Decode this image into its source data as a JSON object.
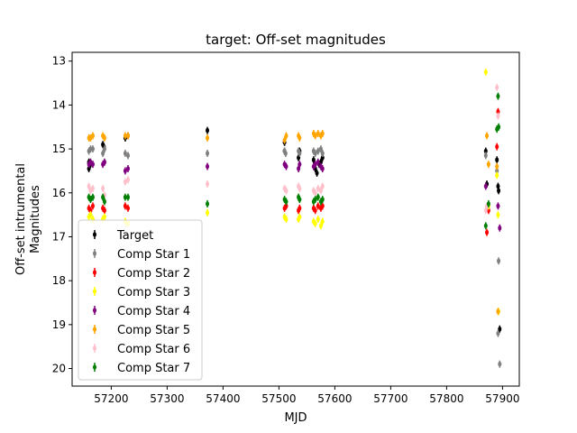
{
  "chart_data": {
    "type": "scatter",
    "title": "target: Off-set magnitudes",
    "xlabel": "MJD",
    "ylabel_lines": [
      "Off-set intrumental",
      "Magnitudes"
    ],
    "xlim": [
      57130,
      57930
    ],
    "ylim": [
      20.4,
      12.8
    ],
    "y_inverted": true,
    "grid": false,
    "legend_position": "lower left",
    "xticks": [
      57200,
      57300,
      57400,
      57500,
      57600,
      57700,
      57800,
      57900
    ],
    "yticks": [
      13,
      14,
      15,
      16,
      17,
      18,
      19,
      20
    ],
    "series": [
      {
        "name": "Target",
        "color": "#000000",
        "points": [
          [
            57160,
            15.45
          ],
          [
            57160,
            15.3
          ],
          [
            57163,
            15.35
          ],
          [
            57185,
            14.9
          ],
          [
            57187,
            14.95
          ],
          [
            57225,
            14.75
          ],
          [
            57230,
            14.7
          ],
          [
            57372,
            14.58
          ],
          [
            57510,
            14.85
          ],
          [
            57510,
            15.05
          ],
          [
            57535,
            15.2
          ],
          [
            57537,
            15.05
          ],
          [
            57562,
            15.25
          ],
          [
            57565,
            15.45
          ],
          [
            57568,
            15.55
          ],
          [
            57572,
            15.35
          ],
          [
            57575,
            15.3
          ],
          [
            57578,
            15.2
          ],
          [
            57870,
            15.05
          ],
          [
            57872,
            15.8
          ],
          [
            57890,
            15.25
          ],
          [
            57892,
            15.85
          ],
          [
            57893,
            15.95
          ],
          [
            57895,
            19.1
          ]
        ]
      },
      {
        "name": "Comp Star 1",
        "color": "#808080",
        "points": [
          [
            57160,
            15.05
          ],
          [
            57163,
            15.0
          ],
          [
            57167,
            15.0
          ],
          [
            57185,
            15.1
          ],
          [
            57188,
            15.0
          ],
          [
            57225,
            15.1
          ],
          [
            57230,
            15.15
          ],
          [
            57372,
            15.1
          ],
          [
            57510,
            15.05
          ],
          [
            57512,
            15.1
          ],
          [
            57535,
            15.05
          ],
          [
            57537,
            15.1
          ],
          [
            57562,
            15.05
          ],
          [
            57565,
            15.1
          ],
          [
            57570,
            15.05
          ],
          [
            57575,
            15.0
          ],
          [
            57578,
            15.1
          ],
          [
            57870,
            15.15
          ],
          [
            57890,
            15.5
          ],
          [
            57893,
            17.55
          ],
          [
            57895,
            19.9
          ],
          [
            57892,
            19.2
          ]
        ]
      },
      {
        "name": "Comp Star 2",
        "color": "#ff0000",
        "points": [
          [
            57160,
            16.35
          ],
          [
            57163,
            16.4
          ],
          [
            57167,
            16.3
          ],
          [
            57185,
            16.35
          ],
          [
            57188,
            16.4
          ],
          [
            57225,
            16.3
          ],
          [
            57230,
            16.35
          ],
          [
            57510,
            16.35
          ],
          [
            57513,
            16.3
          ],
          [
            57535,
            16.4
          ],
          [
            57537,
            16.35
          ],
          [
            57562,
            16.35
          ],
          [
            57565,
            16.4
          ],
          [
            57570,
            16.3
          ],
          [
            57575,
            16.35
          ],
          [
            57578,
            16.3
          ],
          [
            57872,
            16.9
          ],
          [
            57875,
            16.4
          ],
          [
            57890,
            14.95
          ],
          [
            57892,
            14.15
          ]
        ]
      },
      {
        "name": "Comp Star 3",
        "color": "#ffff00",
        "points": [
          [
            57160,
            16.55
          ],
          [
            57163,
            16.5
          ],
          [
            57167,
            16.6
          ],
          [
            57185,
            16.6
          ],
          [
            57188,
            16.55
          ],
          [
            57225,
            16.65
          ],
          [
            57230,
            16.7
          ],
          [
            57372,
            16.45
          ],
          [
            57510,
            16.55
          ],
          [
            57513,
            16.6
          ],
          [
            57535,
            16.6
          ],
          [
            57537,
            16.55
          ],
          [
            57562,
            16.65
          ],
          [
            57565,
            16.7
          ],
          [
            57570,
            16.6
          ],
          [
            57575,
            16.75
          ],
          [
            57578,
            16.65
          ],
          [
            57870,
            13.25
          ],
          [
            57875,
            16.3
          ],
          [
            57890,
            15.6
          ],
          [
            57892,
            16.5
          ],
          [
            57893,
            18.7
          ]
        ]
      },
      {
        "name": "Comp Star 4",
        "color": "#800080",
        "points": [
          [
            57160,
            15.35
          ],
          [
            57163,
            15.3
          ],
          [
            57167,
            15.35
          ],
          [
            57185,
            15.35
          ],
          [
            57188,
            15.3
          ],
          [
            57225,
            15.5
          ],
          [
            57230,
            15.45
          ],
          [
            57372,
            15.4
          ],
          [
            57510,
            15.35
          ],
          [
            57513,
            15.4
          ],
          [
            57535,
            15.45
          ],
          [
            57537,
            15.35
          ],
          [
            57562,
            15.4
          ],
          [
            57565,
            15.35
          ],
          [
            57570,
            15.3
          ],
          [
            57575,
            15.4
          ],
          [
            57578,
            15.45
          ],
          [
            57870,
            15.85
          ],
          [
            57892,
            16.3
          ],
          [
            57895,
            16.8
          ]
        ]
      },
      {
        "name": "Comp Star 5",
        "color": "#ffa500",
        "points": [
          [
            57160,
            14.75
          ],
          [
            57163,
            14.75
          ],
          [
            57167,
            14.7
          ],
          [
            57185,
            14.7
          ],
          [
            57188,
            14.75
          ],
          [
            57225,
            14.7
          ],
          [
            57230,
            14.7
          ],
          [
            57372,
            14.75
          ],
          [
            57510,
            14.8
          ],
          [
            57513,
            14.7
          ],
          [
            57535,
            14.7
          ],
          [
            57537,
            14.75
          ],
          [
            57562,
            14.65
          ],
          [
            57565,
            14.7
          ],
          [
            57570,
            14.65
          ],
          [
            57575,
            14.7
          ],
          [
            57578,
            14.65
          ],
          [
            57872,
            14.7
          ],
          [
            57875,
            15.35
          ],
          [
            57890,
            15.4
          ],
          [
            57892,
            18.7
          ]
        ]
      },
      {
        "name": "Comp Star 6",
        "color": "#ffc0cb",
        "points": [
          [
            57160,
            15.85
          ],
          [
            57163,
            15.95
          ],
          [
            57167,
            15.9
          ],
          [
            57185,
            15.9
          ],
          [
            57188,
            16.05
          ],
          [
            57225,
            15.75
          ],
          [
            57230,
            15.7
          ],
          [
            57372,
            15.8
          ],
          [
            57510,
            15.9
          ],
          [
            57513,
            15.95
          ],
          [
            57535,
            15.85
          ],
          [
            57537,
            15.9
          ],
          [
            57562,
            15.95
          ],
          [
            57565,
            16.0
          ],
          [
            57570,
            15.9
          ],
          [
            57575,
            15.95
          ],
          [
            57578,
            15.85
          ],
          [
            57870,
            16.4
          ],
          [
            57872,
            16.3
          ],
          [
            57890,
            13.6
          ],
          [
            57892,
            14.25
          ]
        ]
      },
      {
        "name": "Comp Star 7",
        "color": "#008000",
        "points": [
          [
            57160,
            16.1
          ],
          [
            57163,
            16.15
          ],
          [
            57167,
            16.1
          ],
          [
            57185,
            16.1
          ],
          [
            57188,
            16.2
          ],
          [
            57225,
            16.1
          ],
          [
            57230,
            16.1
          ],
          [
            57372,
            16.25
          ],
          [
            57510,
            16.15
          ],
          [
            57513,
            16.2
          ],
          [
            57535,
            16.1
          ],
          [
            57537,
            16.15
          ],
          [
            57562,
            16.2
          ],
          [
            57565,
            16.15
          ],
          [
            57570,
            16.1
          ],
          [
            57575,
            16.2
          ],
          [
            57578,
            16.15
          ],
          [
            57870,
            16.75
          ],
          [
            57875,
            16.25
          ],
          [
            57890,
            14.55
          ],
          [
            57892,
            13.8
          ],
          [
            57893,
            14.5
          ]
        ]
      }
    ]
  }
}
